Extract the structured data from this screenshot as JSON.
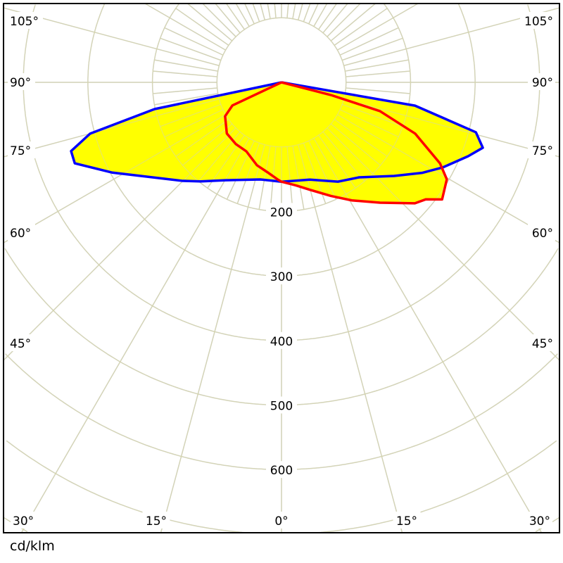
{
  "chart_data": {
    "type": "polar",
    "unit_label": "cd/klm",
    "radial_ticks": [
      200,
      300,
      400,
      500,
      600
    ],
    "radial_grid_step": 100,
    "angle_labels_left": [
      "105°",
      "90°",
      "75°",
      "60°",
      "45°",
      "30°",
      "15°"
    ],
    "angle_labels_bottom": [
      "0°"
    ],
    "angle_labels_right": [
      "15°",
      "30°",
      "45°",
      "60°",
      "75°",
      "90°",
      "105°"
    ],
    "grid": true,
    "fill_color": "#ffff00",
    "series": [
      {
        "color": "#0000ff",
        "points": [
          [
            -90,
            0
          ],
          [
            -78.1,
            201
          ],
          [
            -75,
            307
          ],
          [
            -71.9,
            343
          ],
          [
            -68.6,
            344
          ],
          [
            -61.9,
            297
          ],
          [
            -45,
            216
          ],
          [
            -39.2,
            198
          ],
          [
            -29.9,
            175
          ],
          [
            -12.3,
            154
          ],
          [
            0,
            154
          ],
          [
            16.2,
            157
          ],
          [
            29.6,
            177
          ],
          [
            39.2,
            190
          ],
          [
            50.3,
            227
          ],
          [
            57.2,
            259
          ],
          [
            62.3,
            283
          ],
          [
            68.4,
            311
          ],
          [
            72,
            328
          ],
          [
            75.6,
            311
          ],
          [
            80.1,
            210
          ],
          [
            90,
            0
          ]
        ]
      },
      {
        "color": "#ff0000",
        "points": [
          [
            -90,
            0
          ],
          [
            -64.8,
            84
          ],
          [
            -59,
            102
          ],
          [
            -46.9,
            116
          ],
          [
            -36.4,
            119
          ],
          [
            -27,
            120
          ],
          [
            -16.5,
            134
          ],
          [
            -8.9,
            141
          ],
          [
            -2,
            151
          ],
          [
            0,
            154
          ],
          [
            7.8,
            161
          ],
          [
            14.7,
            172
          ],
          [
            23.5,
            192
          ],
          [
            30.8,
            213
          ],
          [
            39.3,
            241
          ],
          [
            47.8,
            279
          ],
          [
            51,
            288
          ],
          [
            53.9,
            308
          ],
          [
            59.6,
            297
          ],
          [
            62.9,
            276
          ],
          [
            69,
            222
          ],
          [
            73.7,
            159
          ],
          [
            75.6,
            79
          ],
          [
            90,
            0
          ]
        ]
      }
    ]
  }
}
